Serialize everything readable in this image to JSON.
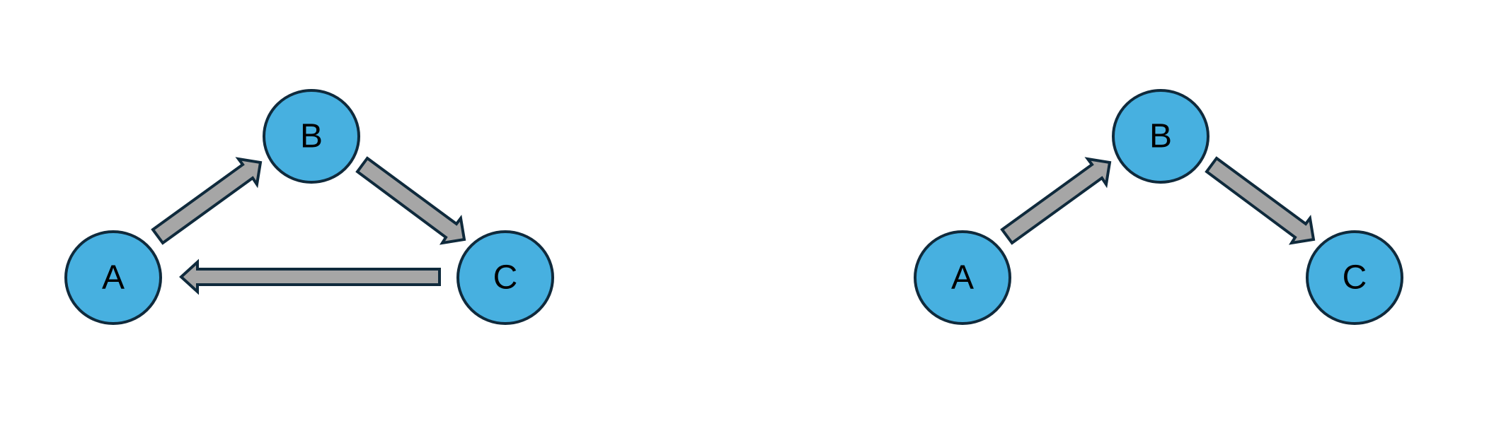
{
  "colors": {
    "background": "#ffffff",
    "node_fill": "#47b0e0",
    "node_stroke": "#0f2a3c",
    "arrow_fill": "#a6a6a6",
    "arrow_stroke": "#0f2a3c",
    "label": "#000000"
  },
  "diagrams": [
    {
      "name": "cycle-graph",
      "nodes": [
        {
          "id": "A",
          "label": "A"
        },
        {
          "id": "B",
          "label": "B"
        },
        {
          "id": "C",
          "label": "C"
        }
      ],
      "edges": [
        {
          "from": "A",
          "to": "B"
        },
        {
          "from": "B",
          "to": "C"
        },
        {
          "from": "C",
          "to": "A"
        }
      ]
    },
    {
      "name": "chain-graph",
      "nodes": [
        {
          "id": "A",
          "label": "A"
        },
        {
          "id": "B",
          "label": "B"
        },
        {
          "id": "C",
          "label": "C"
        }
      ],
      "edges": [
        {
          "from": "A",
          "to": "B"
        },
        {
          "from": "B",
          "to": "C"
        }
      ]
    }
  ]
}
